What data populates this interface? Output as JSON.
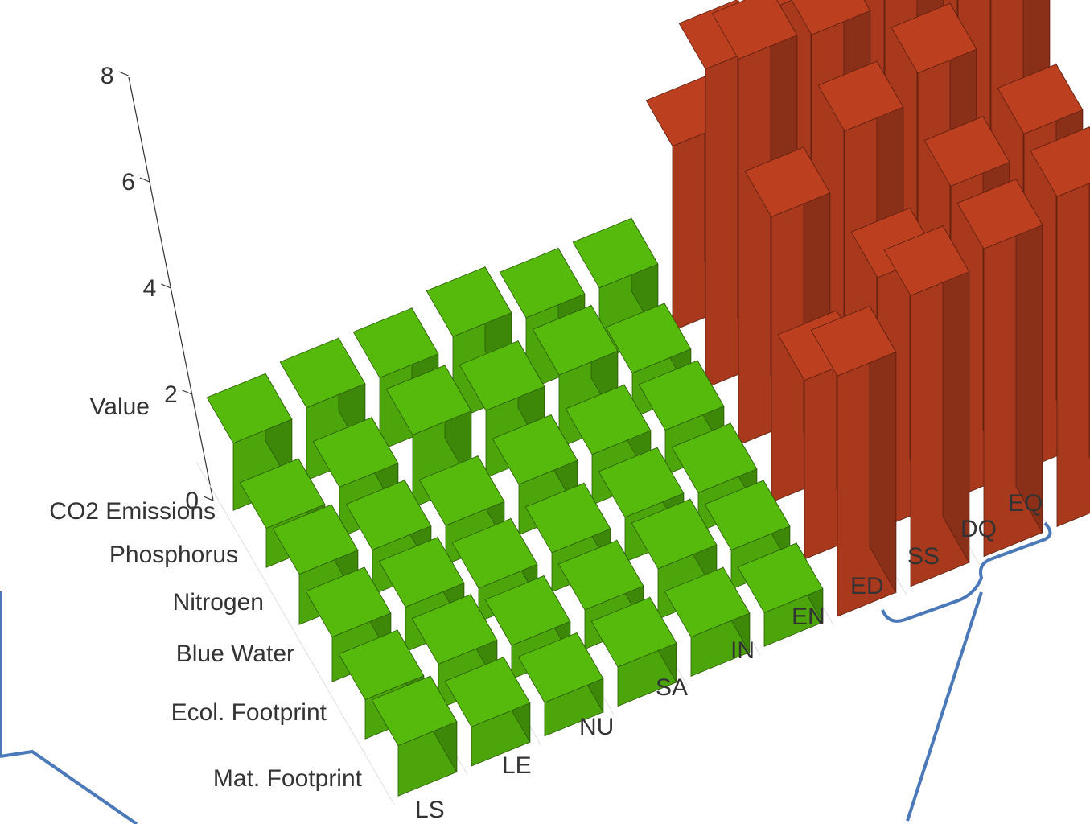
{
  "chart_data": {
    "type": "bar",
    "subtype": "3d-bar-grid",
    "ylabel": "Value",
    "ylim": [
      0,
      8
    ],
    "yticks": [
      "0",
      "2",
      "4",
      "6",
      "8"
    ],
    "columns": [
      "LS",
      "LE",
      "NU",
      "SA",
      "IN",
      "EN",
      "ED",
      "SS",
      "DQ",
      "EQ"
    ],
    "rows": [
      "Mat. Footprint",
      "Ecol. Footprint",
      "Blue Water",
      "Nitrogen",
      "Phosphorus",
      "CO2 Emissions"
    ],
    "colors": {
      "within": "#4ca60b",
      "exceeding": "#a8391d",
      "annotation": "#4a78b9"
    },
    "values": [
      [
        0.9,
        0.7,
        0.6,
        0.7,
        0.7,
        0.6,
        4.3,
        5.2,
        5.5,
        5.9
      ],
      [
        0.7,
        0.8,
        0.6,
        0.7,
        0.9,
        0.7,
        3.2,
        4.5,
        5.6,
        6.0
      ],
      [
        0.8,
        0.8,
        0.6,
        0.7,
        0.8,
        0.7,
        5.1,
        6.1,
        6.6,
        7.6
      ],
      [
        0.9,
        0.8,
        0.7,
        0.9,
        0.9,
        0.8,
        6.9,
        6.8,
        7.0,
        7.4
      ],
      [
        0.7,
        0.9,
        1.3,
        1.2,
        1.3,
        0.8,
        5.7,
        6.3,
        5.9,
        7.5
      ],
      [
        1.2,
        1.3,
        1.3,
        1.5,
        1.3,
        1.3,
        3.3,
        2.9,
        3.0,
        2.9
      ]
    ]
  }
}
